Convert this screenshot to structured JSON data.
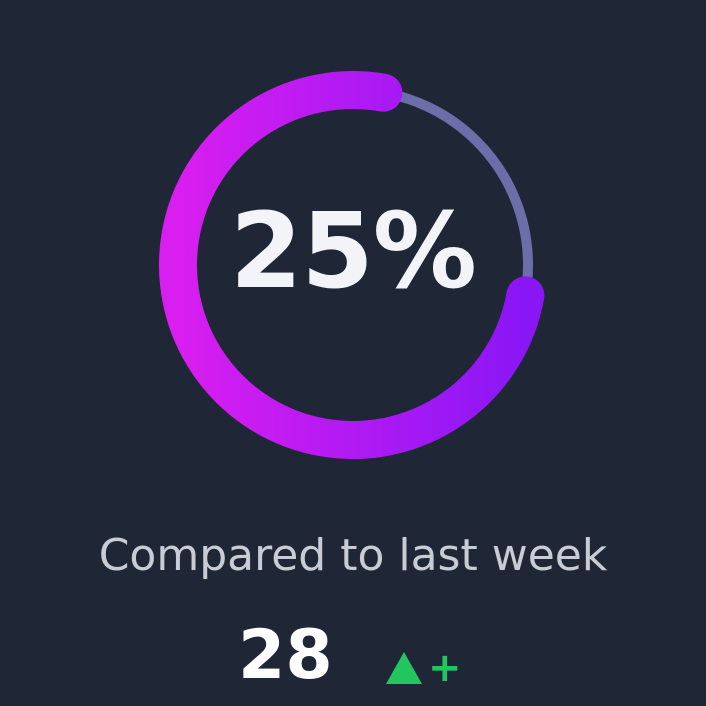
{
  "progress": {
    "percent_label": "25%",
    "value_percent": 25,
    "track_color": "#6b6ea8",
    "gradient_start": "#d91ef0",
    "gradient_end": "#8a16f5"
  },
  "comparison": {
    "label": "Compared to last week",
    "value": "28",
    "trend_icon": "triangle-up-icon",
    "trend_sign": "+",
    "trend_color": "#22c55e"
  },
  "background_color": "#1f2737"
}
